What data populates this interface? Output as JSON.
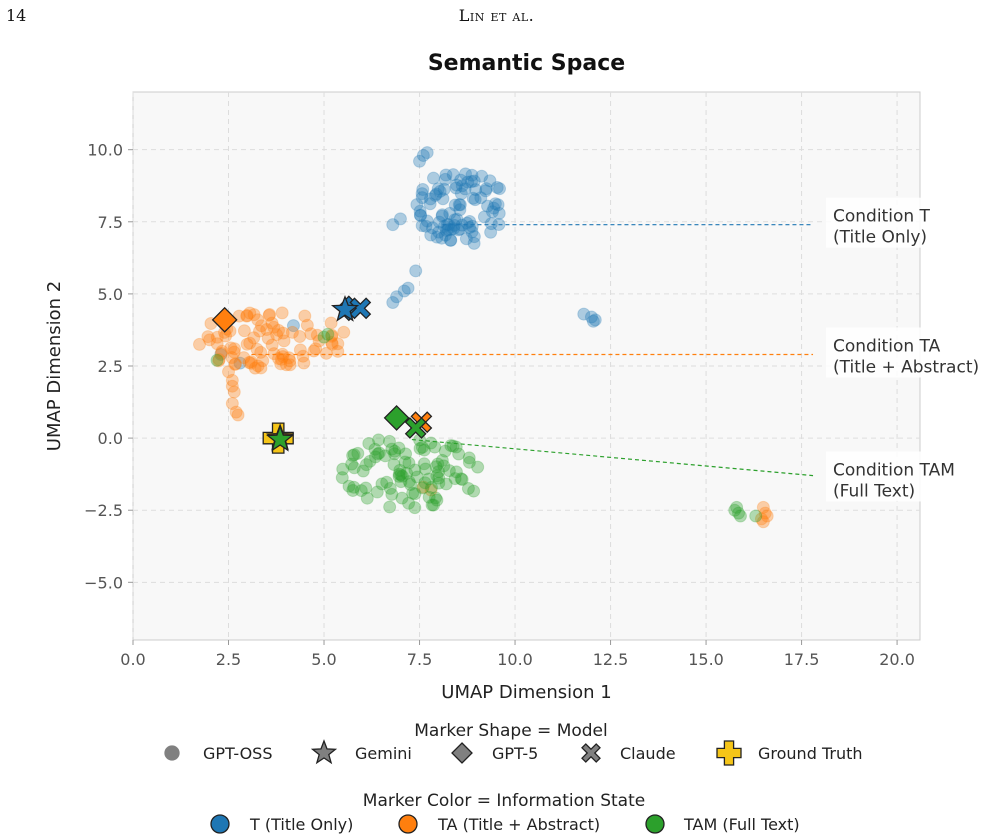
{
  "page": {
    "number": "14",
    "running_head": "Lin et al."
  },
  "chart_data": {
    "type": "scatter",
    "title": "Semantic Space",
    "xlabel": "UMAP Dimension 1",
    "ylabel": "UMAP Dimension 2",
    "xlim": [
      0.0,
      20.6
    ],
    "ylim": [
      -7.0,
      12.0
    ],
    "xticks": [
      "0.0",
      "2.5",
      "5.0",
      "7.5",
      "10.0",
      "12.5",
      "15.0",
      "17.5",
      "20.0"
    ],
    "yticks": [
      "−5.0",
      "−2.5",
      "0.0",
      "2.5",
      "5.0",
      "7.5",
      "10.0"
    ],
    "xtick_values": [
      0,
      2.5,
      5,
      7.5,
      10,
      12.5,
      15,
      17.5,
      20
    ],
    "ytick_values": [
      -5,
      -2.5,
      0,
      2.5,
      5,
      7.5,
      10
    ],
    "grid": true,
    "colors": {
      "T": "#1f77b4",
      "TA": "#ff7f0e",
      "TAM": "#2ca02c",
      "GT": "#f5c518"
    },
    "clusters": [
      {
        "state": "T",
        "region": "main",
        "cx": 8.6,
        "cy": 8.0,
        "rx": 1.2,
        "ry": 1.3,
        "n": 90
      },
      {
        "state": "T",
        "region": "tail",
        "points": [
          [
            6.8,
            4.7
          ],
          [
            6.9,
            4.9
          ],
          [
            7.1,
            5.1
          ],
          [
            7.2,
            5.2
          ],
          [
            7.4,
            5.8
          ],
          [
            6.8,
            7.4
          ],
          [
            7.0,
            7.6
          ],
          [
            7.6,
            9.8
          ],
          [
            7.7,
            9.9
          ],
          [
            7.5,
            9.6
          ],
          [
            11.8,
            4.3
          ],
          [
            12.0,
            4.2
          ],
          [
            12.05,
            4.05
          ],
          [
            12.1,
            4.1
          ],
          [
            2.3,
            2.9
          ],
          [
            4.2,
            3.9
          ],
          [
            2.8,
            2.6
          ]
        ]
      },
      {
        "state": "TA",
        "region": "main",
        "cx": 3.6,
        "cy": 3.4,
        "rx": 2.0,
        "ry": 1.0,
        "n": 85
      },
      {
        "state": "TA",
        "region": "tail",
        "points": [
          [
            2.6,
            2.0
          ],
          [
            2.65,
            1.6
          ],
          [
            2.6,
            1.2
          ],
          [
            2.7,
            0.9
          ],
          [
            2.75,
            0.8
          ],
          [
            2.5,
            2.3
          ],
          [
            2.6,
            1.8
          ],
          [
            16.5,
            -2.4
          ],
          [
            16.55,
            -2.6
          ],
          [
            16.45,
            -2.8
          ],
          [
            16.6,
            -2.7
          ],
          [
            16.5,
            -2.9
          ],
          [
            7.6,
            -1.7
          ],
          [
            7.8,
            -1.8
          ]
        ]
      },
      {
        "state": "TAM",
        "region": "main",
        "cx": 7.3,
        "cy": -1.2,
        "rx": 1.9,
        "ry": 1.3,
        "n": 95
      },
      {
        "state": "TAM",
        "region": "tail",
        "points": [
          [
            15.8,
            -2.4
          ],
          [
            15.85,
            -2.6
          ],
          [
            15.9,
            -2.7
          ],
          [
            15.75,
            -2.5
          ],
          [
            16.3,
            -2.7
          ],
          [
            2.2,
            2.7
          ],
          [
            5.0,
            3.5
          ],
          [
            5.1,
            3.6
          ]
        ]
      }
    ],
    "centroids": [
      {
        "state": "T",
        "model": "Gemini",
        "x": 5.55,
        "y": 4.45
      },
      {
        "state": "T",
        "model": "GPT-5",
        "x": 5.65,
        "y": 4.5
      },
      {
        "state": "T",
        "model": "Claude",
        "x": 5.95,
        "y": 4.5
      },
      {
        "state": "TA",
        "model": "GPT-5",
        "x": 2.4,
        "y": 4.1
      },
      {
        "state": "TA",
        "model": "Claude",
        "x": 7.55,
        "y": 0.55
      },
      {
        "state": "TA",
        "model": "Gemini",
        "x": 3.85,
        "y": 0.0
      },
      {
        "state": "TAM",
        "model": "GPT-5",
        "x": 6.9,
        "y": 0.7
      },
      {
        "state": "TAM",
        "model": "Claude",
        "x": 7.4,
        "y": 0.35
      },
      {
        "state": "TAM",
        "model": "Gemini",
        "x": 3.85,
        "y": -0.05
      }
    ],
    "ground_truth": {
      "x": 3.8,
      "y": 0.0
    },
    "annotations": [
      {
        "state": "T",
        "line1": "Condition T",
        "line2": "(Title Only)",
        "from": [
          8.1,
          7.4
        ],
        "to": [
          17.8,
          7.4
        ],
        "text_y": 7.4
      },
      {
        "state": "TA",
        "line1": "Condition TA",
        "line2": "(Title + Abstract)",
        "from": [
          3.1,
          2.9
        ],
        "to": [
          17.8,
          2.9
        ],
        "text_y": 2.9
      },
      {
        "state": "TAM",
        "line1": "Condition TAM",
        "line2": "(Full Text)",
        "from": [
          7.3,
          -0.05
        ],
        "to": [
          17.8,
          -1.3
        ],
        "text_y": -1.4
      }
    ],
    "legend_shape": {
      "title": "Marker Shape = Model",
      "items": [
        {
          "shape": "circle",
          "label": "GPT-OSS"
        },
        {
          "shape": "star",
          "label": "Gemini"
        },
        {
          "shape": "diamond",
          "label": "GPT-5"
        },
        {
          "shape": "x",
          "label": "Claude"
        },
        {
          "shape": "plus",
          "label": "Ground Truth"
        }
      ]
    },
    "legend_color": {
      "title": "Marker Color = Information State",
      "items": [
        {
          "state": "T",
          "label": "T (Title Only)"
        },
        {
          "state": "TA",
          "label": "TA (Title + Abstract)"
        },
        {
          "state": "TAM",
          "label": "TAM (Full Text)"
        }
      ]
    }
  }
}
